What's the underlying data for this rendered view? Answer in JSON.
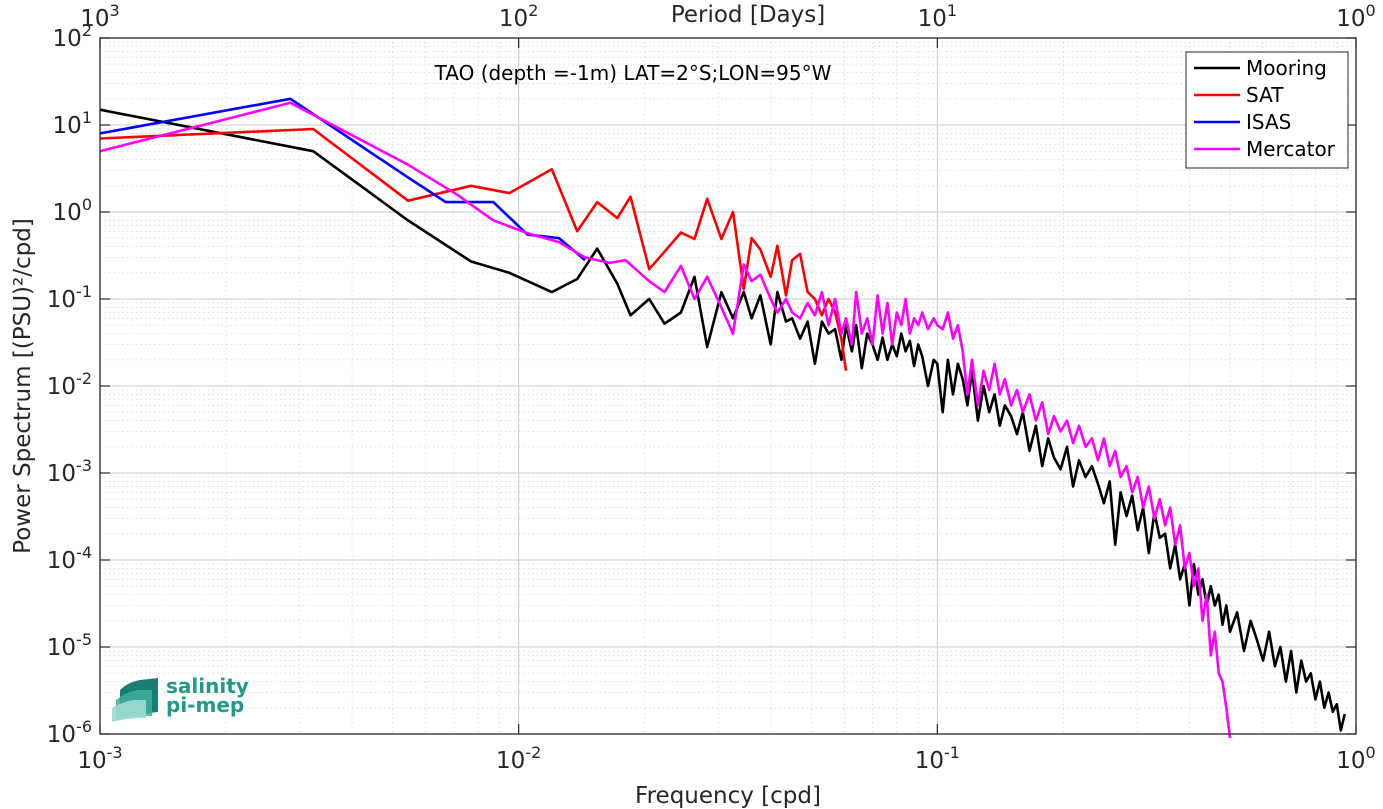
{
  "chart_data": {
    "type": "line",
    "annotation": "TAO (depth =-1m) LAT=2°S;LON=95°W",
    "xlabel": "Frequency [cpd]",
    "ylabel": "Power Spectrum [(PSU)²/cpd]",
    "top_xlabel": "Period [Days]",
    "xscale": "log",
    "yscale": "log",
    "xlim": [
      0.001,
      1
    ],
    "ylim": [
      1e-06,
      100
    ],
    "x_ticks": [
      {
        "value": 0.001,
        "base": "10",
        "exp": "-3"
      },
      {
        "value": 0.01,
        "base": "10",
        "exp": "-2"
      },
      {
        "value": 0.1,
        "base": "10",
        "exp": "-1"
      },
      {
        "value": 1,
        "base": "10",
        "exp": "0"
      }
    ],
    "top_ticks": [
      {
        "freq": 0.001,
        "base": "10",
        "exp": "3"
      },
      {
        "freq": 0.01,
        "base": "10",
        "exp": "2"
      },
      {
        "freq": 0.1,
        "base": "10",
        "exp": "1"
      },
      {
        "freq": 1,
        "base": "10",
        "exp": "0"
      }
    ],
    "y_ticks": [
      {
        "value": 100,
        "base": "10",
        "exp": "2"
      },
      {
        "value": 10,
        "base": "10",
        "exp": "1"
      },
      {
        "value": 1,
        "base": "10",
        "exp": "0"
      },
      {
        "value": 0.1,
        "base": "10",
        "exp": "-1"
      },
      {
        "value": 0.01,
        "base": "10",
        "exp": "-2"
      },
      {
        "value": 0.001,
        "base": "10",
        "exp": "-3"
      },
      {
        "value": 0.0001,
        "base": "10",
        "exp": "-4"
      },
      {
        "value": 1e-05,
        "base": "10",
        "exp": "-5"
      },
      {
        "value": 1e-06,
        "base": "10",
        "exp": "-6"
      }
    ],
    "grid": true,
    "legend_position": "top-right",
    "series": [
      {
        "name": "Mooring",
        "color": "#000000",
        "points": [
          [
            0.001,
            15
          ],
          [
            0.00323,
            5
          ],
          [
            0.00544,
            0.8
          ],
          [
            0.0077,
            0.27
          ],
          [
            0.0095,
            0.2
          ],
          [
            0.012,
            0.12
          ],
          [
            0.0138,
            0.17
          ],
          [
            0.0154,
            0.38
          ],
          [
            0.0172,
            0.15
          ],
          [
            0.0185,
            0.065
          ],
          [
            0.0205,
            0.1
          ],
          [
            0.0223,
            0.052
          ],
          [
            0.0244,
            0.07
          ],
          [
            0.0263,
            0.18
          ],
          [
            0.0282,
            0.028
          ],
          [
            0.0305,
            0.12
          ],
          [
            0.0325,
            0.06
          ],
          [
            0.0345,
            0.12
          ],
          [
            0.036,
            0.06
          ],
          [
            0.0378,
            0.11
          ],
          [
            0.04,
            0.03
          ],
          [
            0.0415,
            0.12
          ],
          [
            0.0435,
            0.055
          ],
          [
            0.045,
            0.06
          ],
          [
            0.047,
            0.035
          ],
          [
            0.049,
            0.055
          ],
          [
            0.051,
            0.018
          ],
          [
            0.053,
            0.055
          ],
          [
            0.055,
            0.04
          ],
          [
            0.057,
            0.045
          ],
          [
            0.059,
            0.02
          ],
          [
            0.0605,
            0.05
          ],
          [
            0.0625,
            0.025
          ],
          [
            0.064,
            0.05
          ],
          [
            0.066,
            0.016
          ],
          [
            0.068,
            0.04
          ],
          [
            0.07,
            0.03
          ],
          [
            0.072,
            0.02
          ],
          [
            0.074,
            0.036
          ],
          [
            0.076,
            0.02
          ],
          [
            0.078,
            0.03
          ],
          [
            0.08,
            0.022
          ],
          [
            0.082,
            0.04
          ],
          [
            0.084,
            0.025
          ],
          [
            0.086,
            0.033
          ],
          [
            0.088,
            0.017
          ],
          [
            0.09,
            0.03
          ],
          [
            0.092,
            0.022
          ],
          [
            0.095,
            0.01
          ],
          [
            0.098,
            0.02
          ],
          [
            0.1,
            0.018
          ],
          [
            0.103,
            0.005
          ],
          [
            0.106,
            0.02
          ],
          [
            0.109,
            0.008
          ],
          [
            0.112,
            0.018
          ],
          [
            0.115,
            0.012
          ],
          [
            0.118,
            0.006
          ],
          [
            0.121,
            0.015
          ],
          [
            0.125,
            0.004
          ],
          [
            0.129,
            0.01
          ],
          [
            0.133,
            0.005
          ],
          [
            0.137,
            0.008
          ],
          [
            0.141,
            0.0035
          ],
          [
            0.145,
            0.006
          ],
          [
            0.15,
            0.0045
          ],
          [
            0.155,
            0.0028
          ],
          [
            0.16,
            0.005
          ],
          [
            0.166,
            0.0018
          ],
          [
            0.172,
            0.0035
          ],
          [
            0.178,
            0.0012
          ],
          [
            0.184,
            0.0025
          ],
          [
            0.19,
            0.0015
          ],
          [
            0.197,
            0.0011
          ],
          [
            0.204,
            0.002
          ],
          [
            0.211,
            0.0007
          ],
          [
            0.218,
            0.0014
          ],
          [
            0.226,
            0.0009
          ],
          [
            0.234,
            0.0012
          ],
          [
            0.242,
            0.00075
          ],
          [
            0.25,
            0.00045
          ],
          [
            0.258,
            0.0008
          ],
          [
            0.266,
            0.00015
          ],
          [
            0.274,
            0.0006
          ],
          [
            0.283,
            0.00032
          ],
          [
            0.292,
            0.00055
          ],
          [
            0.301,
            0.00022
          ],
          [
            0.31,
            0.0004
          ],
          [
            0.32,
            0.00012
          ],
          [
            0.33,
            0.00035
          ],
          [
            0.34,
            0.00018
          ],
          [
            0.35,
            0.0002
          ],
          [
            0.36,
            8e-05
          ],
          [
            0.37,
            0.00015
          ],
          [
            0.38,
            6e-05
          ],
          [
            0.39,
            9e-05
          ],
          [
            0.4,
            3e-05
          ],
          [
            0.41,
            9e-05
          ],
          [
            0.42,
            4e-05
          ],
          [
            0.43,
            6e-05
          ],
          [
            0.44,
            3e-05
          ],
          [
            0.45,
            5e-05
          ],
          [
            0.46,
            3e-05
          ],
          [
            0.47,
            4e-05
          ],
          [
            0.48,
            1.8e-05
          ],
          [
            0.49,
            3e-05
          ],
          [
            0.5,
            1.5e-05
          ],
          [
            0.52,
            2.5e-05
          ],
          [
            0.54,
            9e-06
          ],
          [
            0.56,
            2e-05
          ],
          [
            0.58,
            1.2e-05
          ],
          [
            0.6,
            7e-06
          ],
          [
            0.62,
            1.5e-05
          ],
          [
            0.64,
            6e-06
          ],
          [
            0.66,
            1e-05
          ],
          [
            0.68,
            4e-06
          ],
          [
            0.7,
            9e-06
          ],
          [
            0.72,
            3e-06
          ],
          [
            0.74,
            7e-06
          ],
          [
            0.76,
            4e-06
          ],
          [
            0.78,
            5e-06
          ],
          [
            0.8,
            2.5e-06
          ],
          [
            0.82,
            4e-06
          ],
          [
            0.84,
            2e-06
          ],
          [
            0.86,
            3e-06
          ],
          [
            0.88,
            1.8e-06
          ],
          [
            0.9,
            2.2e-06
          ],
          [
            0.92,
            1.1e-06
          ],
          [
            0.94,
            1.7e-06
          ]
        ]
      },
      {
        "name": "SAT",
        "color": "#ff0000",
        "points": [
          [
            0.001,
            7
          ],
          [
            0.00323,
            9
          ],
          [
            0.00544,
            1.35
          ],
          [
            0.0077,
            2.0
          ],
          [
            0.0095,
            1.65
          ],
          [
            0.012,
            3.1
          ],
          [
            0.0138,
            0.6
          ],
          [
            0.0154,
            1.3
          ],
          [
            0.0172,
            0.85
          ],
          [
            0.0185,
            1.5
          ],
          [
            0.0205,
            0.22
          ],
          [
            0.0223,
            0.35
          ],
          [
            0.0244,
            0.58
          ],
          [
            0.0263,
            0.49
          ],
          [
            0.0282,
            1.42
          ],
          [
            0.0305,
            0.49
          ],
          [
            0.0325,
            1.0
          ],
          [
            0.0345,
            0.13
          ],
          [
            0.036,
            0.5
          ],
          [
            0.0378,
            0.37
          ],
          [
            0.04,
            0.18
          ],
          [
            0.0415,
            0.41
          ],
          [
            0.0435,
            0.11
          ],
          [
            0.045,
            0.28
          ],
          [
            0.047,
            0.33
          ],
          [
            0.049,
            0.12
          ],
          [
            0.051,
            0.1
          ],
          [
            0.053,
            0.065
          ],
          [
            0.055,
            0.1
          ],
          [
            0.057,
            0.07
          ],
          [
            0.059,
            0.035
          ],
          [
            0.0605,
            0.015
          ]
        ]
      },
      {
        "name": "ISAS",
        "color": "#0000ff",
        "points": [
          [
            0.001,
            8
          ],
          [
            0.00285,
            20
          ],
          [
            0.00544,
            2.5
          ],
          [
            0.0067,
            1.3
          ],
          [
            0.0087,
            1.3
          ],
          [
            0.0105,
            0.55
          ],
          [
            0.0125,
            0.5
          ],
          [
            0.0144,
            0.28
          ]
        ]
      },
      {
        "name": "Mercator",
        "color": "#ff00ff",
        "points": [
          [
            0.001,
            5
          ],
          [
            0.00285,
            18
          ],
          [
            0.00544,
            3.5
          ],
          [
            0.0071,
            1.6
          ],
          [
            0.0087,
            0.8
          ],
          [
            0.0105,
            0.57
          ],
          [
            0.0125,
            0.45
          ],
          [
            0.0144,
            0.3
          ],
          [
            0.0165,
            0.26
          ],
          [
            0.018,
            0.28
          ],
          [
            0.0205,
            0.16
          ],
          [
            0.0223,
            0.12
          ],
          [
            0.0244,
            0.24
          ],
          [
            0.0263,
            0.1
          ],
          [
            0.0282,
            0.18
          ],
          [
            0.0305,
            0.08
          ],
          [
            0.0325,
            0.04
          ],
          [
            0.0345,
            0.25
          ],
          [
            0.036,
            0.16
          ],
          [
            0.0378,
            0.19
          ],
          [
            0.04,
            0.1
          ],
          [
            0.0415,
            0.07
          ],
          [
            0.0435,
            0.1
          ],
          [
            0.045,
            0.07
          ],
          [
            0.047,
            0.06
          ],
          [
            0.049,
            0.09
          ],
          [
            0.051,
            0.065
          ],
          [
            0.053,
            0.12
          ],
          [
            0.055,
            0.05
          ],
          [
            0.057,
            0.1
          ],
          [
            0.059,
            0.04
          ],
          [
            0.0605,
            0.06
          ],
          [
            0.0625,
            0.03
          ],
          [
            0.064,
            0.12
          ],
          [
            0.066,
            0.04
          ],
          [
            0.068,
            0.06
          ],
          [
            0.07,
            0.03
          ],
          [
            0.072,
            0.11
          ],
          [
            0.074,
            0.04
          ],
          [
            0.076,
            0.09
          ],
          [
            0.078,
            0.03
          ],
          [
            0.08,
            0.07
          ],
          [
            0.082,
            0.05
          ],
          [
            0.084,
            0.1
          ],
          [
            0.086,
            0.04
          ],
          [
            0.088,
            0.06
          ],
          [
            0.09,
            0.05
          ],
          [
            0.092,
            0.07
          ],
          [
            0.095,
            0.045
          ],
          [
            0.098,
            0.06
          ],
          [
            0.1,
            0.05
          ],
          [
            0.103,
            0.045
          ],
          [
            0.106,
            0.07
          ],
          [
            0.109,
            0.035
          ],
          [
            0.112,
            0.05
          ],
          [
            0.115,
            0.025
          ],
          [
            0.118,
            0.008
          ],
          [
            0.121,
            0.02
          ],
          [
            0.125,
            0.006
          ],
          [
            0.129,
            0.015
          ],
          [
            0.133,
            0.009
          ],
          [
            0.137,
            0.018
          ],
          [
            0.141,
            0.008
          ],
          [
            0.145,
            0.012
          ],
          [
            0.15,
            0.006
          ],
          [
            0.155,
            0.009
          ],
          [
            0.16,
            0.005
          ],
          [
            0.166,
            0.008
          ],
          [
            0.172,
            0.004
          ],
          [
            0.178,
            0.0065
          ],
          [
            0.184,
            0.0028
          ],
          [
            0.19,
            0.0045
          ],
          [
            0.197,
            0.003
          ],
          [
            0.204,
            0.004
          ],
          [
            0.211,
            0.0022
          ],
          [
            0.218,
            0.0035
          ],
          [
            0.226,
            0.002
          ],
          [
            0.234,
            0.0025
          ],
          [
            0.242,
            0.0014
          ],
          [
            0.25,
            0.0025
          ],
          [
            0.258,
            0.0012
          ],
          [
            0.266,
            0.0018
          ],
          [
            0.274,
            0.0009
          ],
          [
            0.283,
            0.0012
          ],
          [
            0.292,
            0.0006
          ],
          [
            0.301,
            0.0009
          ],
          [
            0.31,
            0.0004
          ],
          [
            0.32,
            0.0007
          ],
          [
            0.33,
            0.0003
          ],
          [
            0.34,
            0.0005
          ],
          [
            0.35,
            0.00025
          ],
          [
            0.36,
            0.0004
          ],
          [
            0.37,
            0.00015
          ],
          [
            0.38,
            0.00025
          ],
          [
            0.39,
            8e-05
          ],
          [
            0.4,
            0.00012
          ],
          [
            0.41,
            5e-05
          ],
          [
            0.42,
            8e-05
          ],
          [
            0.43,
            2e-05
          ],
          [
            0.44,
            4e-05
          ],
          [
            0.45,
            8e-06
          ],
          [
            0.46,
            1.5e-05
          ],
          [
            0.47,
            5e-06
          ],
          [
            0.48,
            4e-06
          ],
          [
            0.49,
            2e-06
          ],
          [
            0.5,
            9e-07
          ]
        ]
      }
    ]
  },
  "logo": {
    "line1": "salinity",
    "line2": "pi-mep",
    "color": "#1f9a8a"
  }
}
